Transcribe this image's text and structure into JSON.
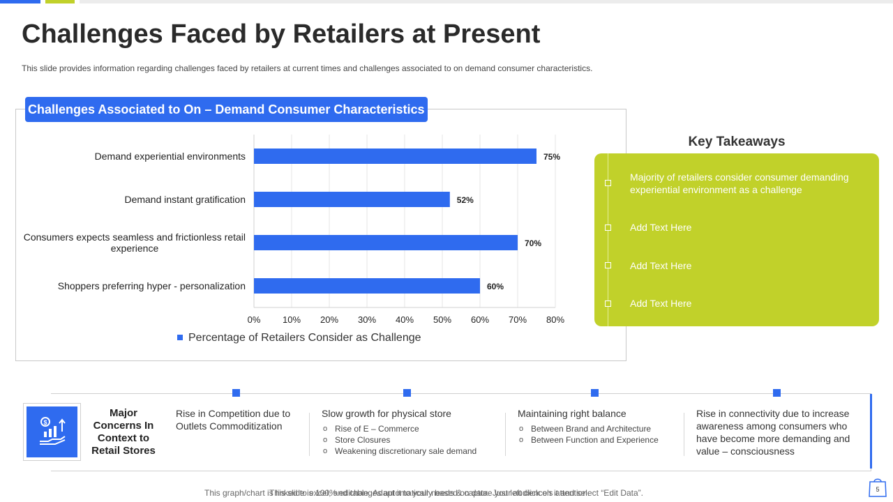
{
  "slide": {
    "title": "Challenges Faced by Retailers at Present",
    "subtitle": "This slide provides information regarding challenges faced by retailers at current times and challenges associated to on demand consumer characteristics.",
    "page_number": "5"
  },
  "colors": {
    "accent_blue": "#2f6bef",
    "accent_green": "#c1d12a"
  },
  "chart_data": {
    "type": "bar",
    "orientation": "horizontal",
    "title": "Challenges Associated to On – Demand Consumer Characteristics",
    "categories": [
      "Demand experiential environments",
      "Demand instant gratification",
      "Consumers expects seamless and frictionless retail experience",
      "Shoppers preferring hyper - personalization"
    ],
    "category_lines": [
      [
        "Demand experiential environments"
      ],
      [
        "Demand instant gratification"
      ],
      [
        "Consumers expects seamless and frictionless retail",
        "experience"
      ],
      [
        "Shoppers preferring hyper - personalization"
      ]
    ],
    "series": [
      {
        "name": "Percentage of Retailers Consider as Challenge",
        "values": [
          75,
          52,
          70,
          60
        ]
      }
    ],
    "data_labels": [
      "75%",
      "52%",
      "70%",
      "60%"
    ],
    "x_ticks": [
      "0%",
      "10%",
      "20%",
      "30%",
      "40%",
      "50%",
      "60%",
      "70%",
      "80%"
    ],
    "xlim": [
      0,
      80
    ],
    "grid": true,
    "legend_position": "bottom",
    "xlabel": "",
    "ylabel": ""
  },
  "key_takeaways": {
    "title": "Key Takeaways",
    "items": [
      "Majority of retailers consider consumer demanding experiential environment as a challenge",
      "Add Text Here",
      "Add Text Here",
      "Add Text Here"
    ]
  },
  "concerns": {
    "label": "Major Concerns In Context to Retail Stores",
    "icon": "growth-chart-hand-icon",
    "columns": [
      {
        "heading": "Rise in Competition due to Outlets Commoditization",
        "bullets": []
      },
      {
        "heading": "Slow growth for physical store",
        "bullets": [
          "Rise of E – Commerce",
          "Store Closures",
          "Weakening discretionary sale demand"
        ]
      },
      {
        "heading": "Maintaining right balance",
        "bullets": [
          "Between Brand and Architecture",
          "Between Function and Experience"
        ]
      },
      {
        "heading": "Rise in connectivity due to increase awareness among consumers who have become more demanding and value – consciousness",
        "bullets": []
      }
    ]
  },
  "footer": {
    "line1": "This graph/chart is linked to excel, and changes automatically based on data. Just left click on it and select “Edit Data”.",
    "line2": "This slide is 100% editable. Adapt it to your needs & capture your audience's attention."
  }
}
